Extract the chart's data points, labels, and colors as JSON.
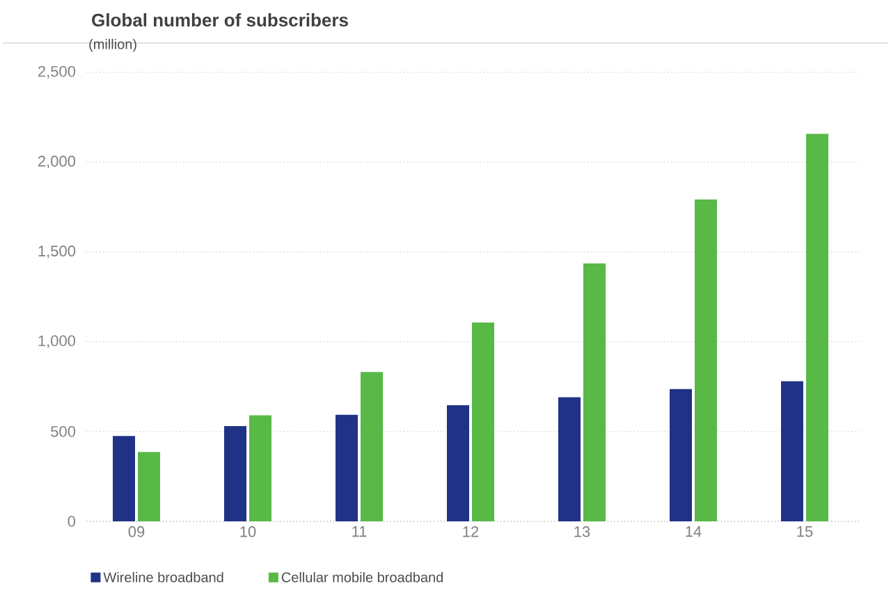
{
  "chart_data": {
    "type": "bar",
    "title": "Global number of subscribers",
    "ylabel": "(million)",
    "categories": [
      "09",
      "10",
      "11",
      "12",
      "13",
      "14",
      "15"
    ],
    "series": [
      {
        "name": "Wireline broadband",
        "color": "#1f3286",
        "values": [
          475,
          530,
          593,
          646,
          691,
          736,
          780
        ]
      },
      {
        "name": "Cellular mobile broadband",
        "color": "#58b947",
        "values": [
          386,
          590,
          831,
          1107,
          1436,
          1792,
          2157
        ]
      }
    ],
    "ylim": [
      0,
      2500
    ],
    "yticks": [
      {
        "value": 0,
        "label": "0"
      },
      {
        "value": 500,
        "label": "500"
      },
      {
        "value": 1000,
        "label": "1,000"
      },
      {
        "value": 1500,
        "label": "1,500"
      },
      {
        "value": 2000,
        "label": "2,000"
      },
      {
        "value": 2500,
        "label": "2,500"
      }
    ],
    "grid": "y",
    "legend": "bottom left"
  }
}
